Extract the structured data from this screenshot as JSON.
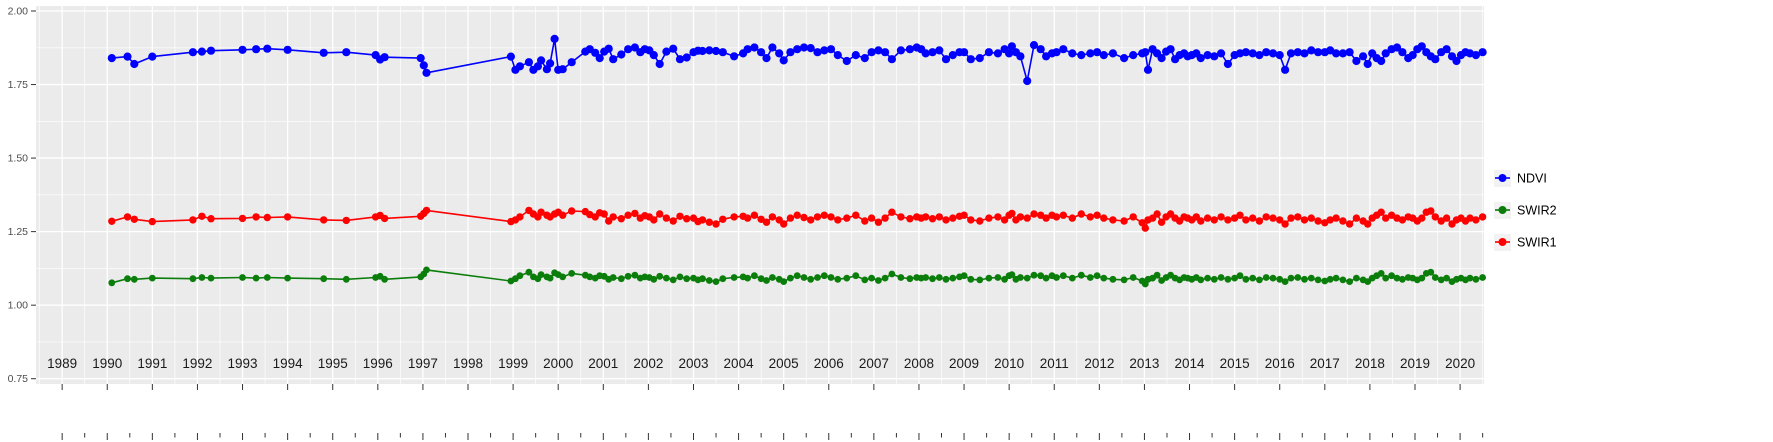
{
  "figure": {
    "background": "#FFFFFF",
    "panel_background": "#EBEBEB",
    "grid_color": "#FFFFFF",
    "tick_color": "#333333",
    "y_label_color": "#4D4D4D",
    "x_label_color": "#1A1A1A"
  },
  "legend": {
    "position": "right",
    "key_fill": "#F2F2F2",
    "items": [
      {
        "label": "NDVI",
        "color": "#0000FF"
      },
      {
        "label": "SWIR2",
        "color": "#0A7D0A"
      },
      {
        "label": "SWIR1",
        "color": "#FF0000"
      }
    ]
  },
  "chart_data": {
    "type": "line",
    "title": "",
    "xlabel": "",
    "ylabel": "",
    "grid": true,
    "legend_position": "right",
    "xlim": [
      1988.42,
      2020.53
    ],
    "ylim": [
      0.732,
      2.017
    ],
    "x_ticks": [
      1989,
      1990,
      1991,
      1992,
      1993,
      1994,
      1995,
      1996,
      1997,
      1998,
      1999,
      2000,
      2001,
      2002,
      2003,
      2004,
      2005,
      2006,
      2007,
      2008,
      2009,
      2010,
      2011,
      2012,
      2013,
      2014,
      2015,
      2016,
      2017,
      2018,
      2019,
      2020
    ],
    "y_ticks": [
      2.0,
      1.75,
      1.5,
      1.25,
      1.0,
      0.75
    ],
    "y_tick_labels": [
      "2.00",
      "1.75",
      "1.50",
      "1.25",
      "1.00",
      "0.75"
    ],
    "x": [
      1990.1,
      1990.45,
      1990.6,
      1991.0,
      1991.9,
      1992.1,
      1992.3,
      1993.0,
      1993.3,
      1993.55,
      1994.0,
      1994.8,
      1995.3,
      1995.95,
      1996.05,
      1996.15,
      1996.95,
      1997.02,
      1997.08,
      1998.95,
      1999.05,
      1999.15,
      1999.35,
      1999.45,
      1999.55,
      1999.62,
      1999.75,
      1999.82,
      1999.92,
      2000.0,
      2000.1,
      2000.3,
      2000.6,
      2000.7,
      2000.82,
      2000.92,
      2001.02,
      2001.12,
      2001.22,
      2001.4,
      2001.55,
      2001.7,
      2001.82,
      2001.92,
      2002.02,
      2002.12,
      2002.25,
      2002.4,
      2002.55,
      2002.7,
      2002.85,
      2003.0,
      2003.1,
      2003.2,
      2003.35,
      2003.5,
      2003.65,
      2003.9,
      2004.1,
      2004.2,
      2004.35,
      2004.5,
      2004.62,
      2004.75,
      2004.9,
      2005.0,
      2005.15,
      2005.3,
      2005.45,
      2005.6,
      2005.75,
      2005.9,
      2006.05,
      2006.2,
      2006.4,
      2006.6,
      2006.8,
      2006.95,
      2007.1,
      2007.25,
      2007.4,
      2007.6,
      2007.8,
      2007.95,
      2008.05,
      2008.15,
      2008.3,
      2008.45,
      2008.6,
      2008.75,
      2008.9,
      2009.0,
      2009.15,
      2009.35,
      2009.55,
      2009.75,
      2009.9,
      2010.0,
      2010.06,
      2010.15,
      2010.25,
      2010.4,
      2010.55,
      2010.7,
      2010.82,
      2010.95,
      2011.05,
      2011.2,
      2011.4,
      2011.6,
      2011.8,
      2011.95,
      2012.1,
      2012.3,
      2012.55,
      2012.75,
      2012.95,
      2013.02,
      2013.08,
      2013.18,
      2013.28,
      2013.38,
      2013.48,
      2013.58,
      2013.68,
      2013.78,
      2013.88,
      2013.96,
      2014.05,
      2014.15,
      2014.25,
      2014.4,
      2014.55,
      2014.7,
      2014.85,
      2015.0,
      2015.12,
      2015.25,
      2015.4,
      2015.55,
      2015.7,
      2015.85,
      2016.0,
      2016.12,
      2016.25,
      2016.4,
      2016.55,
      2016.7,
      2016.85,
      2017.0,
      2017.12,
      2017.25,
      2017.4,
      2017.55,
      2017.7,
      2017.85,
      2017.95,
      2018.05,
      2018.15,
      2018.25,
      2018.35,
      2018.48,
      2018.6,
      2018.72,
      2018.85,
      2018.95,
      2019.05,
      2019.15,
      2019.25,
      2019.35,
      2019.45,
      2019.58,
      2019.7,
      2019.82,
      2019.92,
      2020.02,
      2020.12,
      2020.22,
      2020.35,
      2020.5
    ],
    "series": [
      {
        "name": "NDVI",
        "color": "#0000FF",
        "values": [
          1.84,
          1.845,
          1.82,
          1.845,
          1.86,
          1.862,
          1.865,
          1.868,
          1.87,
          1.872,
          1.868,
          1.858,
          1.86,
          1.85,
          1.835,
          1.843,
          1.84,
          1.815,
          1.79,
          1.845,
          1.8,
          1.812,
          1.826,
          1.8,
          1.812,
          1.832,
          1.802,
          1.822,
          1.905,
          1.8,
          1.802,
          1.826,
          1.862,
          1.87,
          1.858,
          1.84,
          1.862,
          1.872,
          1.836,
          1.852,
          1.87,
          1.876,
          1.86,
          1.87,
          1.866,
          1.85,
          1.82,
          1.862,
          1.872,
          1.836,
          1.842,
          1.86,
          1.865,
          1.864,
          1.866,
          1.864,
          1.86,
          1.846,
          1.856,
          1.87,
          1.876,
          1.86,
          1.84,
          1.876,
          1.856,
          1.832,
          1.86,
          1.87,
          1.876,
          1.874,
          1.86,
          1.866,
          1.87,
          1.85,
          1.83,
          1.85,
          1.84,
          1.86,
          1.866,
          1.86,
          1.836,
          1.866,
          1.87,
          1.876,
          1.87,
          1.856,
          1.86,
          1.866,
          1.836,
          1.85,
          1.86,
          1.86,
          1.836,
          1.84,
          1.86,
          1.856,
          1.87,
          1.856,
          1.88,
          1.86,
          1.846,
          1.762,
          1.884,
          1.87,
          1.846,
          1.856,
          1.86,
          1.87,
          1.856,
          1.85,
          1.856,
          1.86,
          1.85,
          1.856,
          1.84,
          1.85,
          1.856,
          1.86,
          1.8,
          1.87,
          1.856,
          1.84,
          1.862,
          1.87,
          1.836,
          1.85,
          1.856,
          1.846,
          1.85,
          1.856,
          1.84,
          1.85,
          1.846,
          1.856,
          1.82,
          1.85,
          1.856,
          1.86,
          1.856,
          1.85,
          1.86,
          1.856,
          1.85,
          1.8,
          1.856,
          1.86,
          1.856,
          1.866,
          1.86,
          1.86,
          1.866,
          1.856,
          1.856,
          1.86,
          1.83,
          1.846,
          1.82,
          1.856,
          1.84,
          1.83,
          1.856,
          1.87,
          1.876,
          1.86,
          1.84,
          1.85,
          1.87,
          1.88,
          1.86,
          1.846,
          1.836,
          1.86,
          1.87,
          1.846,
          1.83,
          1.85,
          1.86,
          1.856,
          1.85,
          1.86
        ]
      },
      {
        "name": "SWIR2",
        "color": "#0A7D0A",
        "values": [
          1.076,
          1.09,
          1.088,
          1.092,
          1.09,
          1.094,
          1.092,
          1.094,
          1.092,
          1.094,
          1.092,
          1.09,
          1.088,
          1.094,
          1.098,
          1.088,
          1.096,
          1.106,
          1.12,
          1.082,
          1.09,
          1.1,
          1.112,
          1.096,
          1.09,
          1.104,
          1.096,
          1.092,
          1.11,
          1.104,
          1.096,
          1.108,
          1.102,
          1.096,
          1.092,
          1.1,
          1.098,
          1.088,
          1.094,
          1.09,
          1.098,
          1.102,
          1.092,
          1.096,
          1.094,
          1.088,
          1.098,
          1.092,
          1.086,
          1.096,
          1.09,
          1.092,
          1.086,
          1.09,
          1.084,
          1.08,
          1.09,
          1.094,
          1.096,
          1.092,
          1.1,
          1.09,
          1.084,
          1.094,
          1.088,
          1.08,
          1.092,
          1.1,
          1.094,
          1.088,
          1.094,
          1.1,
          1.094,
          1.088,
          1.092,
          1.1,
          1.086,
          1.092,
          1.084,
          1.092,
          1.106,
          1.094,
          1.09,
          1.094,
          1.092,
          1.094,
          1.09,
          1.094,
          1.088,
          1.092,
          1.096,
          1.1,
          1.088,
          1.086,
          1.092,
          1.094,
          1.088,
          1.1,
          1.104,
          1.088,
          1.094,
          1.092,
          1.102,
          1.1,
          1.092,
          1.1,
          1.094,
          1.1,
          1.092,
          1.102,
          1.094,
          1.1,
          1.092,
          1.088,
          1.086,
          1.094,
          1.082,
          1.072,
          1.088,
          1.092,
          1.102,
          1.084,
          1.094,
          1.102,
          1.092,
          1.086,
          1.094,
          1.092,
          1.088,
          1.094,
          1.086,
          1.092,
          1.088,
          1.094,
          1.088,
          1.092,
          1.1,
          1.088,
          1.092,
          1.086,
          1.094,
          1.092,
          1.088,
          1.08,
          1.092,
          1.094,
          1.088,
          1.092,
          1.086,
          1.082,
          1.088,
          1.092,
          1.086,
          1.08,
          1.092,
          1.086,
          1.08,
          1.092,
          1.1,
          1.108,
          1.092,
          1.1,
          1.092,
          1.088,
          1.094,
          1.092,
          1.086,
          1.092,
          1.108,
          1.112,
          1.094,
          1.086,
          1.092,
          1.08,
          1.088,
          1.092,
          1.086,
          1.092,
          1.088,
          1.094
        ]
      },
      {
        "name": "SWIR1",
        "color": "#FF0000",
        "values": [
          1.285,
          1.3,
          1.292,
          1.284,
          1.29,
          1.302,
          1.294,
          1.295,
          1.3,
          1.298,
          1.3,
          1.29,
          1.288,
          1.3,
          1.305,
          1.295,
          1.302,
          1.312,
          1.322,
          1.284,
          1.29,
          1.3,
          1.322,
          1.31,
          1.3,
          1.316,
          1.306,
          1.3,
          1.31,
          1.316,
          1.306,
          1.32,
          1.318,
          1.308,
          1.3,
          1.314,
          1.31,
          1.286,
          1.3,
          1.294,
          1.306,
          1.312,
          1.296,
          1.304,
          1.3,
          1.29,
          1.31,
          1.296,
          1.286,
          1.302,
          1.294,
          1.296,
          1.284,
          1.29,
          1.282,
          1.276,
          1.292,
          1.3,
          1.302,
          1.296,
          1.306,
          1.292,
          1.282,
          1.3,
          1.29,
          1.276,
          1.296,
          1.306,
          1.298,
          1.29,
          1.3,
          1.306,
          1.3,
          1.29,
          1.296,
          1.306,
          1.286,
          1.296,
          1.282,
          1.296,
          1.316,
          1.3,
          1.294,
          1.3,
          1.296,
          1.3,
          1.294,
          1.3,
          1.29,
          1.296,
          1.302,
          1.306,
          1.29,
          1.286,
          1.296,
          1.3,
          1.29,
          1.306,
          1.312,
          1.29,
          1.3,
          1.296,
          1.31,
          1.306,
          1.296,
          1.306,
          1.3,
          1.306,
          1.296,
          1.31,
          1.3,
          1.306,
          1.296,
          1.29,
          1.286,
          1.3,
          1.28,
          1.262,
          1.29,
          1.296,
          1.31,
          1.282,
          1.3,
          1.31,
          1.296,
          1.286,
          1.3,
          1.296,
          1.29,
          1.3,
          1.286,
          1.296,
          1.29,
          1.3,
          1.29,
          1.296,
          1.306,
          1.29,
          1.296,
          1.286,
          1.3,
          1.296,
          1.29,
          1.276,
          1.296,
          1.3,
          1.29,
          1.296,
          1.286,
          1.28,
          1.29,
          1.296,
          1.286,
          1.276,
          1.296,
          1.286,
          1.276,
          1.296,
          1.306,
          1.316,
          1.296,
          1.306,
          1.296,
          1.29,
          1.3,
          1.296,
          1.286,
          1.296,
          1.316,
          1.32,
          1.3,
          1.286,
          1.296,
          1.276,
          1.29,
          1.296,
          1.286,
          1.296,
          1.29,
          1.3
        ]
      }
    ]
  }
}
